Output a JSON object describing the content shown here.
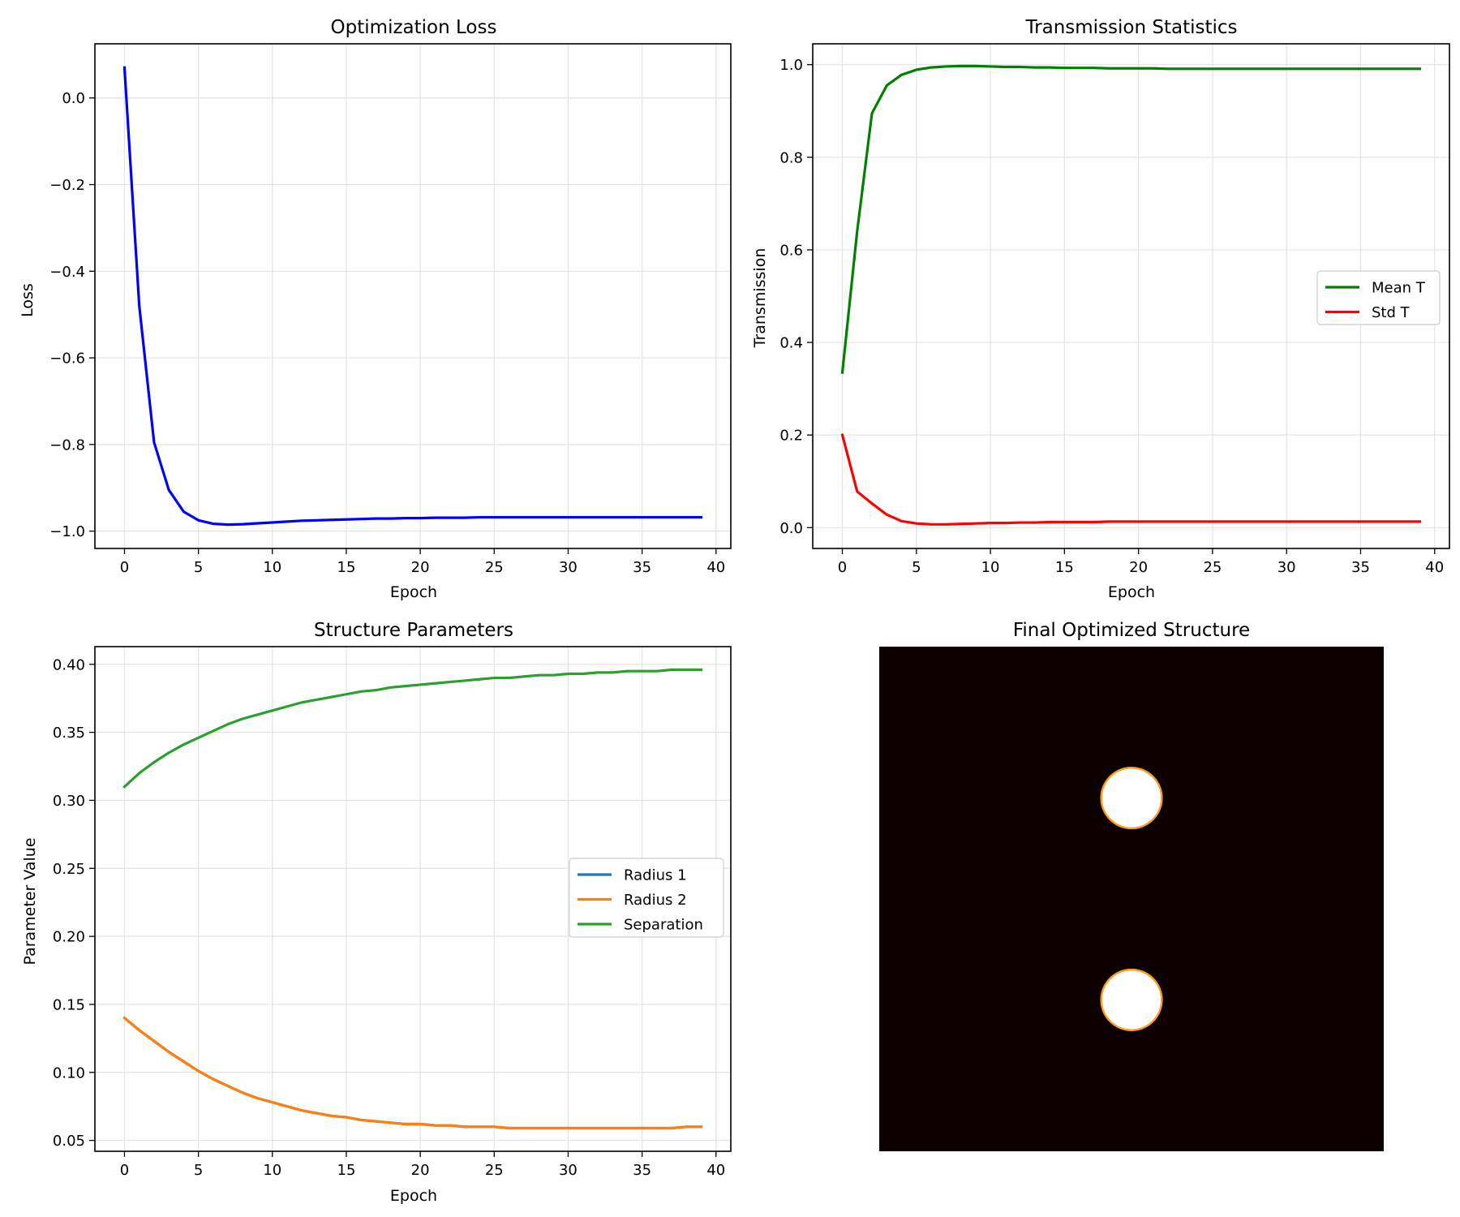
{
  "chart_data": [
    {
      "type": "line",
      "title": "Optimization Loss",
      "xlabel": "Epoch",
      "ylabel": "Loss",
      "xlim": [
        -2,
        41
      ],
      "ylim": [
        -1.04,
        0.125
      ],
      "xticks": [
        0,
        5,
        10,
        15,
        20,
        25,
        30,
        35,
        40
      ],
      "yticks": [
        0.0,
        -0.2,
        -0.4,
        -0.6,
        -0.8,
        -1.0
      ],
      "ytick_labels": [
        "0.0",
        "−0.2",
        "−0.4",
        "−0.6",
        "−0.8",
        "−1.0"
      ],
      "grid": true,
      "x": [
        0,
        1,
        2,
        3,
        4,
        5,
        6,
        7,
        8,
        9,
        10,
        11,
        12,
        13,
        14,
        15,
        16,
        17,
        18,
        19,
        20,
        21,
        22,
        23,
        24,
        25,
        26,
        27,
        28,
        29,
        30,
        31,
        32,
        33,
        34,
        35,
        36,
        37,
        38,
        39
      ],
      "series": [
        {
          "name": "",
          "color": "#0000ff",
          "values": [
            0.07,
            -0.48,
            -0.795,
            -0.905,
            -0.955,
            -0.975,
            -0.983,
            -0.985,
            -0.984,
            -0.982,
            -0.98,
            -0.978,
            -0.976,
            -0.975,
            -0.974,
            -0.973,
            -0.972,
            -0.971,
            -0.971,
            -0.97,
            -0.97,
            -0.969,
            -0.969,
            -0.969,
            -0.968,
            -0.968,
            -0.968,
            -0.968,
            -0.968,
            -0.968,
            -0.968,
            -0.968,
            -0.968,
            -0.968,
            -0.968,
            -0.968,
            -0.968,
            -0.968,
            -0.968,
            -0.968
          ]
        }
      ]
    },
    {
      "type": "line",
      "title": "Transmission Statistics",
      "xlabel": "Epoch",
      "ylabel": "Transmission",
      "xlim": [
        -2,
        41
      ],
      "ylim": [
        -0.045,
        1.045
      ],
      "xticks": [
        0,
        5,
        10,
        15,
        20,
        25,
        30,
        35,
        40
      ],
      "yticks": [
        0.0,
        0.2,
        0.4,
        0.6,
        0.8,
        1.0
      ],
      "ytick_labels": [
        "0.0",
        "0.2",
        "0.4",
        "0.6",
        "0.8",
        "1.0"
      ],
      "grid": true,
      "legend": "center-right",
      "x": [
        0,
        1,
        2,
        3,
        4,
        5,
        6,
        7,
        8,
        9,
        10,
        11,
        12,
        13,
        14,
        15,
        16,
        17,
        18,
        19,
        20,
        21,
        22,
        23,
        24,
        25,
        26,
        27,
        28,
        29,
        30,
        31,
        32,
        33,
        34,
        35,
        36,
        37,
        38,
        39
      ],
      "series": [
        {
          "name": "Mean T",
          "color": "#008000",
          "values": [
            0.335,
            0.64,
            0.895,
            0.955,
            0.978,
            0.989,
            0.994,
            0.996,
            0.997,
            0.997,
            0.996,
            0.995,
            0.995,
            0.994,
            0.994,
            0.993,
            0.993,
            0.993,
            0.992,
            0.992,
            0.992,
            0.992,
            0.991,
            0.991,
            0.991,
            0.991,
            0.991,
            0.991,
            0.991,
            0.991,
            0.991,
            0.991,
            0.991,
            0.991,
            0.991,
            0.991,
            0.991,
            0.991,
            0.991,
            0.991
          ]
        },
        {
          "name": "Std T",
          "color": "#ff0000",
          "values": [
            0.2,
            0.078,
            0.052,
            0.028,
            0.014,
            0.009,
            0.007,
            0.007,
            0.008,
            0.009,
            0.01,
            0.01,
            0.011,
            0.011,
            0.012,
            0.012,
            0.012,
            0.012,
            0.013,
            0.013,
            0.013,
            0.013,
            0.013,
            0.013,
            0.013,
            0.013,
            0.013,
            0.013,
            0.013,
            0.013,
            0.013,
            0.013,
            0.013,
            0.013,
            0.013,
            0.013,
            0.013,
            0.013,
            0.013,
            0.013
          ]
        }
      ]
    },
    {
      "type": "line",
      "title": "Structure Parameters",
      "xlabel": "Epoch",
      "ylabel": "Parameter Value",
      "xlim": [
        -2,
        41
      ],
      "ylim": [
        0.042,
        0.413
      ],
      "xticks": [
        0,
        5,
        10,
        15,
        20,
        25,
        30,
        35,
        40
      ],
      "yticks": [
        0.05,
        0.1,
        0.15,
        0.2,
        0.25,
        0.3,
        0.35,
        0.4
      ],
      "ytick_labels": [
        "0.05",
        "0.10",
        "0.15",
        "0.20",
        "0.25",
        "0.30",
        "0.35",
        "0.40"
      ],
      "grid": true,
      "legend": "center-right",
      "x": [
        0,
        1,
        2,
        3,
        4,
        5,
        6,
        7,
        8,
        9,
        10,
        11,
        12,
        13,
        14,
        15,
        16,
        17,
        18,
        19,
        20,
        21,
        22,
        23,
        24,
        25,
        26,
        27,
        28,
        29,
        30,
        31,
        32,
        33,
        34,
        35,
        36,
        37,
        38,
        39
      ],
      "series": [
        {
          "name": "Radius 1",
          "color": "#1f77b4",
          "values": [
            0.14,
            0.131,
            0.123,
            0.115,
            0.108,
            0.101,
            0.095,
            0.09,
            0.085,
            0.081,
            0.078,
            0.075,
            0.072,
            0.07,
            0.068,
            0.067,
            0.065,
            0.064,
            0.063,
            0.062,
            0.062,
            0.061,
            0.061,
            0.06,
            0.06,
            0.06,
            0.059,
            0.059,
            0.059,
            0.059,
            0.059,
            0.059,
            0.059,
            0.059,
            0.059,
            0.059,
            0.059,
            0.059,
            0.06,
            0.06
          ]
        },
        {
          "name": "Radius 2",
          "color": "#ff7f0e",
          "values": [
            0.14,
            0.131,
            0.123,
            0.115,
            0.108,
            0.101,
            0.095,
            0.09,
            0.085,
            0.081,
            0.078,
            0.075,
            0.072,
            0.07,
            0.068,
            0.067,
            0.065,
            0.064,
            0.063,
            0.062,
            0.062,
            0.061,
            0.061,
            0.06,
            0.06,
            0.06,
            0.059,
            0.059,
            0.059,
            0.059,
            0.059,
            0.059,
            0.059,
            0.059,
            0.059,
            0.059,
            0.059,
            0.059,
            0.06,
            0.06
          ]
        },
        {
          "name": "Separation",
          "color": "#2ca02c",
          "values": [
            0.31,
            0.32,
            0.328,
            0.335,
            0.341,
            0.346,
            0.351,
            0.356,
            0.36,
            0.363,
            0.366,
            0.369,
            0.372,
            0.374,
            0.376,
            0.378,
            0.38,
            0.381,
            0.383,
            0.384,
            0.385,
            0.386,
            0.387,
            0.388,
            0.389,
            0.39,
            0.39,
            0.391,
            0.392,
            0.392,
            0.393,
            0.393,
            0.394,
            0.394,
            0.395,
            0.395,
            0.395,
            0.396,
            0.396,
            0.396
          ]
        }
      ]
    },
    {
      "type": "heatmap",
      "title": "Final Optimized Structure",
      "grid": false,
      "axes_visible": false,
      "background_color": "#0c0000",
      "feature_color": "#ffffff",
      "feature_edge_color": "#ff9a1a",
      "domain": [
        -0.5,
        0.5
      ],
      "features": [
        {
          "shape": "circle",
          "cx": 0.0,
          "cy": 0.2,
          "r": 0.06
        },
        {
          "shape": "circle",
          "cx": 0.0,
          "cy": -0.2,
          "r": 0.06
        }
      ]
    }
  ]
}
